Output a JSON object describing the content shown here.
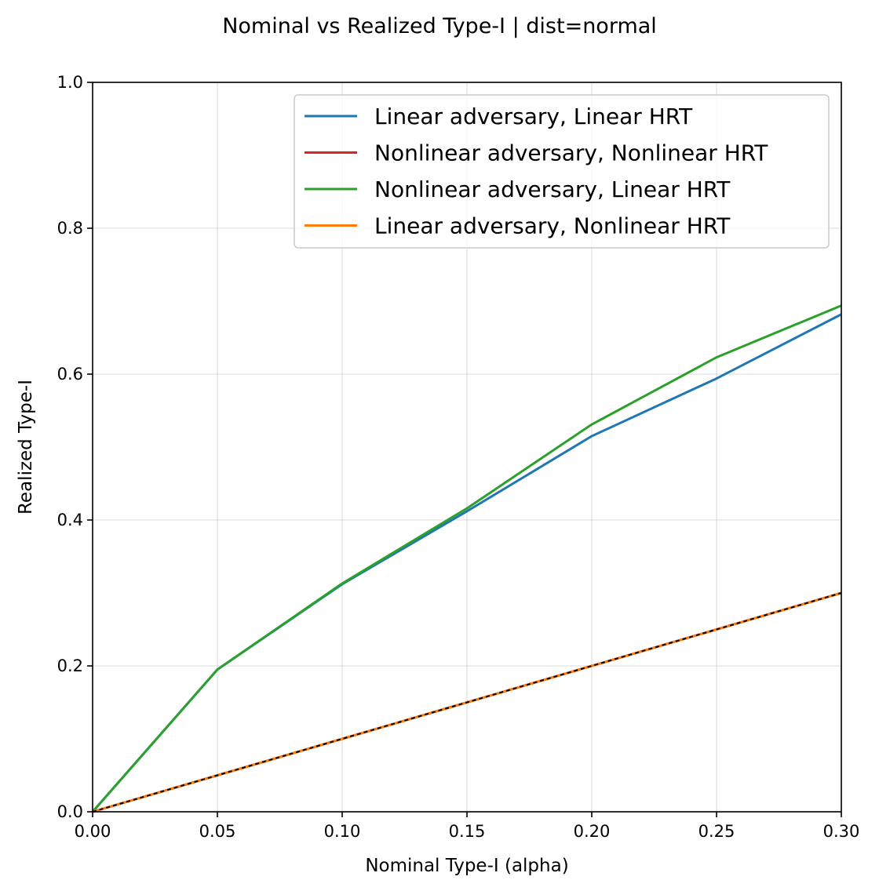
{
  "chart_data": {
    "type": "line",
    "title": "Nominal vs Realized Type-I | dist=normal",
    "xlabel": "Nominal Type-I (alpha)",
    "ylabel": "Realized Type-I",
    "xlim": [
      0.0,
      0.3
    ],
    "ylim": [
      0.0,
      1.0
    ],
    "xticks": [
      "0.00",
      "0.05",
      "0.10",
      "0.15",
      "0.20",
      "0.25",
      "0.30"
    ],
    "yticks": [
      "0.0",
      "0.2",
      "0.4",
      "0.6",
      "0.8",
      "1.0"
    ],
    "grid": true,
    "legend_position": "top-right",
    "x": [
      0.0,
      0.05,
      0.1,
      0.15,
      0.2,
      0.25,
      0.3
    ],
    "series": [
      {
        "name": "Linear adversary, Linear HRT",
        "color": "#1f77b4",
        "values": [
          0.0,
          0.195,
          0.312,
          0.412,
          0.515,
          0.594,
          0.682
        ]
      },
      {
        "name": "Nonlinear adversary, Nonlinear HRT",
        "color": "#d62728",
        "values": [
          0.0,
          0.05,
          0.1,
          0.15,
          0.2,
          0.25,
          0.3
        ]
      },
      {
        "name": "Nonlinear adversary, Linear HRT",
        "color": "#2ca02c",
        "values": [
          0.0,
          0.195,
          0.313,
          0.416,
          0.531,
          0.623,
          0.694
        ]
      },
      {
        "name": "Linear adversary, Nonlinear HRT",
        "color": "#ff7f0e",
        "values": [
          0.0,
          0.05,
          0.1,
          0.15,
          0.2,
          0.25,
          0.3
        ]
      }
    ],
    "reference_line": {
      "name": "y = x",
      "color": "#000000",
      "style": "dashed",
      "values": [
        0.0,
        0.05,
        0.1,
        0.15,
        0.2,
        0.25,
        0.3
      ]
    }
  }
}
